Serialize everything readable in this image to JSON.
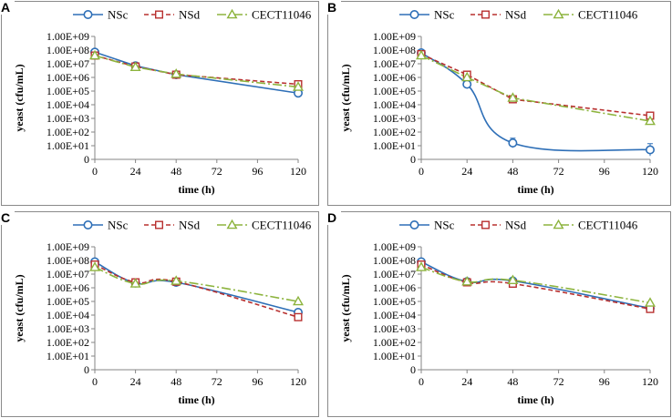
{
  "colors": {
    "NSc": "#2e6fb7",
    "NSd": "#b8302f",
    "CECT11046": "#8db43e"
  },
  "chart_data": [
    {
      "panel": "A",
      "type": "line",
      "xlabel": "time (h)",
      "ylabel": "yeast (cfu/mL)",
      "x": [
        0,
        24,
        48,
        120
      ],
      "xticks": [
        "0",
        "24",
        "48",
        "72",
        "96",
        "120"
      ],
      "yticks": [
        "0",
        "1.00E+01",
        "1.00E+02",
        "1.00E+03",
        "1.00E+04",
        "1.00E+05",
        "1.00E+06",
        "1.00E+07",
        "1.00E+08",
        "1.00E+09"
      ],
      "xlim": [
        0,
        120
      ],
      "ylim_log10": [
        0,
        9
      ],
      "legend": [
        "NSc",
        "NSd",
        "CECT11046"
      ],
      "series": [
        {
          "name": "NSc",
          "log10_values": [
            7.85,
            6.85,
            6.2,
            4.85
          ],
          "errors": [
            0.1,
            0.08,
            0.08,
            0.1
          ],
          "smooth": false
        },
        {
          "name": "NSd",
          "log10_values": [
            7.6,
            6.8,
            6.2,
            5.5
          ],
          "errors": [
            0,
            0,
            0,
            0
          ]
        },
        {
          "name": "CECT11046",
          "log10_values": [
            7.6,
            6.75,
            6.25,
            5.3
          ],
          "errors": [
            0,
            0,
            0,
            0
          ]
        }
      ]
    },
    {
      "panel": "B",
      "type": "line",
      "xlabel": "time (h)",
      "ylabel": "yeast (cfu/mL)",
      "x": [
        0,
        24,
        48,
        120
      ],
      "xticks": [
        "0",
        "24",
        "48",
        "72",
        "96",
        "120"
      ],
      "yticks": [
        "0",
        "1.00E+01",
        "1.00E+02",
        "1.00E+03",
        "1.00E+04",
        "1.00E+05",
        "1.00E+06",
        "1.00E+07",
        "1.00E+08",
        "1.00E+09"
      ],
      "xlim": [
        0,
        120
      ],
      "ylim_log10": [
        0,
        9
      ],
      "legend": [
        "NSc",
        "NSd",
        "CECT11046"
      ],
      "series": [
        {
          "name": "NSc",
          "log10_values": [
            7.8,
            5.5,
            1.2,
            0.7
          ],
          "errors": [
            0.1,
            0.1,
            0.35,
            0.45
          ],
          "smooth": true
        },
        {
          "name": "NSd",
          "log10_values": [
            7.7,
            6.2,
            4.4,
            3.2
          ],
          "errors": [
            0,
            0,
            0,
            0
          ]
        },
        {
          "name": "CECT11046",
          "log10_values": [
            7.6,
            6.0,
            4.5,
            2.8
          ],
          "errors": [
            0,
            0,
            0,
            0
          ]
        }
      ]
    },
    {
      "panel": "C",
      "type": "line",
      "xlabel": "time (h)",
      "ylabel": "yeast (cfu/mL)",
      "x": [
        0,
        24,
        48,
        120
      ],
      "xticks": [
        "0",
        "24",
        "48",
        "72",
        "96",
        "120"
      ],
      "yticks": [
        "0",
        "1.00E+01",
        "1.00E+02",
        "1.00E+03",
        "1.00E+04",
        "1.00E+05",
        "1.00E+06",
        "1.00E+07",
        "1.00E+08",
        "1.00E+09"
      ],
      "xlim": [
        0,
        120
      ],
      "ylim_log10": [
        0,
        9
      ],
      "legend": [
        "NSc",
        "NSd",
        "CECT11046"
      ],
      "series": [
        {
          "name": "NSc",
          "log10_values": [
            7.9,
            6.35,
            6.4,
            4.2
          ],
          "errors": [
            0,
            0,
            0,
            0
          ],
          "smooth": true
        },
        {
          "name": "NSd",
          "log10_values": [
            7.7,
            6.4,
            6.45,
            3.85
          ],
          "errors": [
            0,
            0,
            0,
            0
          ],
          "smooth": true
        },
        {
          "name": "CECT11046",
          "log10_values": [
            7.5,
            6.3,
            6.5,
            5.0
          ],
          "errors": [
            0,
            0,
            0,
            0
          ],
          "smooth": true
        }
      ]
    },
    {
      "panel": "D",
      "type": "line",
      "xlabel": "time (h)",
      "ylabel": "yeast (cfu/mL)",
      "x": [
        0,
        24,
        48,
        120
      ],
      "xticks": [
        "0",
        "24",
        "48",
        "72",
        "96",
        "120"
      ],
      "yticks": [
        "0",
        "1.00E+01",
        "1.00E+02",
        "1.00E+03",
        "1.00E+04",
        "1.00E+05",
        "1.00E+06",
        "1.00E+07",
        "1.00E+08",
        "1.00E+09"
      ],
      "xlim": [
        0,
        120
      ],
      "ylim_log10": [
        0,
        9
      ],
      "legend": [
        "NSc",
        "NSd",
        "CECT11046"
      ],
      "series": [
        {
          "name": "NSc",
          "log10_values": [
            7.9,
            6.45,
            6.5,
            4.5
          ],
          "errors": [
            0,
            0,
            0,
            0
          ],
          "smooth": true
        },
        {
          "name": "NSd",
          "log10_values": [
            7.7,
            6.4,
            6.3,
            4.45
          ],
          "errors": [
            0,
            0,
            0,
            0
          ],
          "smooth": true
        },
        {
          "name": "CECT11046",
          "log10_values": [
            7.5,
            6.45,
            6.55,
            4.9
          ],
          "errors": [
            0,
            0,
            0,
            0
          ],
          "smooth": true
        }
      ]
    }
  ]
}
